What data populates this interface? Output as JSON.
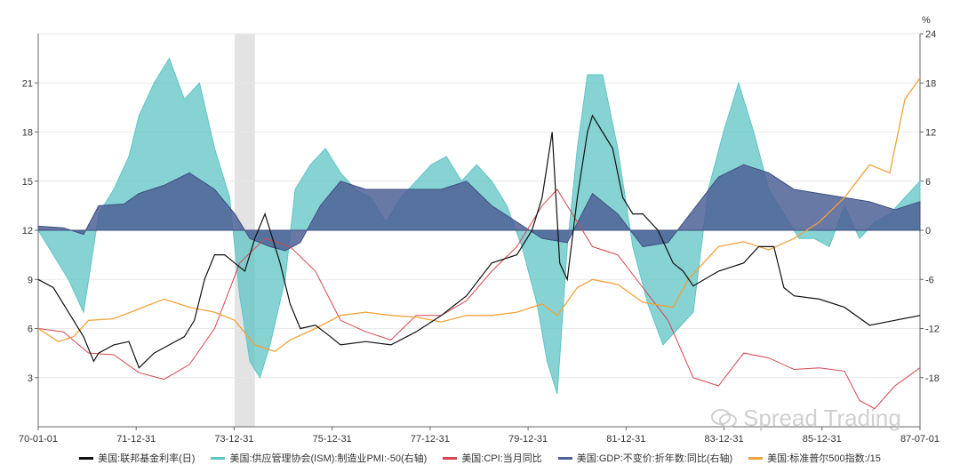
{
  "chart_data": {
    "type": "line",
    "title": "",
    "x_axis": {
      "ticks": [
        "70-01-01",
        "71-12-31",
        "73-12-31",
        "75-12-31",
        "77-12-31",
        "79-12-31",
        "81-12-31",
        "83-12-31",
        "85-12-31",
        "87-07-01"
      ],
      "range": [
        1970.0,
        1987.5
      ]
    },
    "y_left": {
      "range": [
        0,
        24
      ],
      "ticks": [
        3,
        6,
        9,
        12,
        15,
        18,
        21
      ]
    },
    "y_right": {
      "unit": "%",
      "range": [
        -24,
        24
      ],
      "ticks": [
        -18,
        -12,
        -6,
        0,
        6,
        12,
        18,
        24
      ]
    },
    "recession_band": {
      "start": 1973.9,
      "end": 1974.3
    },
    "series": [
      {
        "name": "美国:联邦基金利率(日)",
        "axis": "left",
        "kind": "line",
        "color": "#111111",
        "x": [
          1970.0,
          1970.3,
          1970.6,
          1970.9,
          1971.1,
          1971.2,
          1971.5,
          1971.8,
          1972.0,
          1972.3,
          1972.6,
          1972.9,
          1973.1,
          1973.3,
          1973.5,
          1973.7,
          1973.9,
          1974.1,
          1974.3,
          1974.5,
          1974.6,
          1974.8,
          1975.0,
          1975.2,
          1975.5,
          1975.8,
          1976.0,
          1976.5,
          1977.0,
          1977.5,
          1978.0,
          1978.5,
          1979.0,
          1979.5,
          1979.8,
          1980.0,
          1980.2,
          1980.35,
          1980.5,
          1980.7,
          1980.9,
          1981.0,
          1981.2,
          1981.4,
          1981.6,
          1981.8,
          1982.0,
          1982.3,
          1982.6,
          1982.8,
          1983.0,
          1983.5,
          1984.0,
          1984.3,
          1984.6,
          1984.8,
          1985.0,
          1985.5,
          1986.0,
          1986.5,
          1987.0,
          1987.5
        ],
        "y": [
          9.0,
          8.5,
          7.0,
          5.5,
          4.0,
          4.5,
          5.0,
          5.2,
          3.6,
          4.5,
          5.0,
          5.5,
          6.5,
          9.0,
          10.5,
          10.5,
          10.0,
          9.5,
          11.5,
          13.0,
          12.0,
          10.0,
          7.5,
          6.0,
          6.2,
          5.5,
          5.0,
          5.2,
          5.0,
          5.8,
          6.8,
          8.0,
          10.0,
          10.5,
          12.0,
          14.0,
          18.0,
          10.0,
          9.0,
          14.0,
          18.0,
          19.0,
          18.0,
          17.0,
          14.0,
          13.0,
          13.0,
          12.0,
          10.0,
          9.5,
          8.6,
          9.5,
          10.0,
          11.0,
          11.0,
          8.5,
          8.0,
          7.8,
          7.3,
          6.2,
          6.5,
          6.8
        ]
      },
      {
        "name": "美国:供应管理协会(ISM):制造业PMI:-50(右轴)",
        "axis": "right",
        "kind": "area",
        "color": "#5fc4c4",
        "x": [
          1970.0,
          1970.3,
          1970.6,
          1970.9,
          1971.2,
          1971.5,
          1971.8,
          1972.0,
          1972.3,
          1972.6,
          1972.9,
          1973.2,
          1973.5,
          1973.8,
          1974.0,
          1974.2,
          1974.4,
          1974.6,
          1974.9,
          1975.1,
          1975.4,
          1975.7,
          1976.0,
          1976.3,
          1976.6,
          1976.9,
          1977.2,
          1977.5,
          1977.8,
          1978.1,
          1978.4,
          1978.7,
          1979.0,
          1979.3,
          1979.6,
          1979.9,
          1980.1,
          1980.3,
          1980.5,
          1980.7,
          1980.9,
          1981.2,
          1981.5,
          1981.8,
          1982.1,
          1982.4,
          1982.7,
          1983.0,
          1983.3,
          1983.6,
          1983.9,
          1984.2,
          1984.5,
          1984.8,
          1985.1,
          1985.4,
          1985.7,
          1986.0,
          1986.3,
          1986.6,
          1986.9,
          1987.2,
          1987.5
        ],
        "y": [
          0,
          -3,
          -6,
          -10,
          2,
          5,
          9,
          14,
          18,
          21,
          16,
          18,
          10,
          4,
          -8,
          -16,
          -18,
          -14,
          -6,
          5,
          8,
          10,
          7,
          5,
          4,
          1,
          4,
          6,
          8,
          9,
          6,
          8,
          6,
          3,
          -2,
          -9,
          -16,
          -20,
          -2,
          10,
          19,
          19,
          10,
          -2,
          -9,
          -14,
          -12,
          -10,
          5,
          12,
          18,
          12,
          5,
          2,
          -1,
          -1,
          -2,
          3,
          -1,
          1,
          2,
          4,
          6
        ]
      },
      {
        "name": "美国:CPI:当月同比",
        "axis": "left",
        "kind": "line",
        "color": "#d64550",
        "x": [
          1970.0,
          1970.5,
          1971.0,
          1971.5,
          1972.0,
          1972.5,
          1973.0,
          1973.5,
          1974.0,
          1974.5,
          1975.0,
          1975.5,
          1976.0,
          1976.5,
          1977.0,
          1977.5,
          1978.0,
          1978.5,
          1979.0,
          1979.5,
          1980.0,
          1980.3,
          1980.6,
          1981.0,
          1981.5,
          1982.0,
          1982.5,
          1983.0,
          1983.5,
          1984.0,
          1984.5,
          1985.0,
          1985.5,
          1986.0,
          1986.3,
          1986.6,
          1987.0,
          1987.5
        ],
        "y": [
          6.0,
          5.8,
          4.5,
          4.4,
          3.3,
          2.9,
          3.8,
          6.0,
          10.0,
          11.5,
          11.0,
          9.5,
          6.5,
          5.8,
          5.3,
          6.8,
          6.8,
          7.7,
          9.5,
          11.0,
          13.5,
          14.5,
          13.0,
          11.0,
          10.5,
          8.5,
          6.5,
          3.0,
          2.5,
          4.5,
          4.2,
          3.5,
          3.6,
          3.4,
          1.6,
          1.1,
          2.5,
          3.6
        ]
      },
      {
        "name": "美国:GDP:不变价:折年数:同比(右轴)",
        "axis": "right",
        "kind": "area",
        "color": "#4d6196",
        "x": [
          1970.0,
          1970.5,
          1970.9,
          1971.2,
          1971.7,
          1972.0,
          1972.5,
          1973.0,
          1973.5,
          1973.9,
          1974.2,
          1974.6,
          1974.9,
          1975.2,
          1975.6,
          1976.0,
          1976.5,
          1977.0,
          1977.5,
          1978.0,
          1978.5,
          1979.0,
          1979.5,
          1980.0,
          1980.5,
          1981.0,
          1981.5,
          1982.0,
          1982.5,
          1983.0,
          1983.5,
          1984.0,
          1984.5,
          1985.0,
          1985.5,
          1986.0,
          1986.5,
          1987.0,
          1987.5
        ],
        "y": [
          0.5,
          0.3,
          -0.5,
          3.0,
          3.2,
          4.5,
          5.5,
          7.0,
          5.0,
          2.0,
          -1.0,
          -2.0,
          -2.5,
          -1.5,
          3.0,
          6.0,
          5.0,
          5.0,
          5.0,
          5.0,
          6.0,
          3.0,
          1.0,
          -1.0,
          -1.5,
          4.5,
          2.0,
          -2.0,
          -1.5,
          2.5,
          6.5,
          8.0,
          7.0,
          5.0,
          4.5,
          4.0,
          3.5,
          2.5,
          3.5
        ]
      },
      {
        "name": "美国:标准普尔500指数:/15",
        "axis": "left",
        "kind": "line",
        "color": "#f2a23a",
        "x": [
          1970.0,
          1970.4,
          1970.7,
          1971.0,
          1971.5,
          1972.0,
          1972.5,
          1973.0,
          1973.5,
          1973.9,
          1974.3,
          1974.7,
          1975.0,
          1975.5,
          1976.0,
          1976.5,
          1977.0,
          1977.5,
          1978.0,
          1978.5,
          1979.0,
          1979.5,
          1980.0,
          1980.3,
          1980.7,
          1981.0,
          1981.5,
          1982.0,
          1982.6,
          1982.9,
          1983.2,
          1983.5,
          1984.0,
          1984.5,
          1985.0,
          1985.5,
          1986.0,
          1986.5,
          1986.9,
          1987.2,
          1987.5
        ],
        "y": [
          6.0,
          5.2,
          5.5,
          6.5,
          6.6,
          7.2,
          7.8,
          7.3,
          7.0,
          6.5,
          5.0,
          4.6,
          5.3,
          6.0,
          6.8,
          7.0,
          6.8,
          6.7,
          6.4,
          6.8,
          6.8,
          7.0,
          7.5,
          6.8,
          8.5,
          9.0,
          8.7,
          7.6,
          7.3,
          9.0,
          10.0,
          11.0,
          11.3,
          10.8,
          11.5,
          12.5,
          14.0,
          16.0,
          15.5,
          20.0,
          21.3
        ]
      }
    ]
  },
  "watermark": {
    "text": "Spread Trading",
    "icon": "wechat-icon"
  }
}
